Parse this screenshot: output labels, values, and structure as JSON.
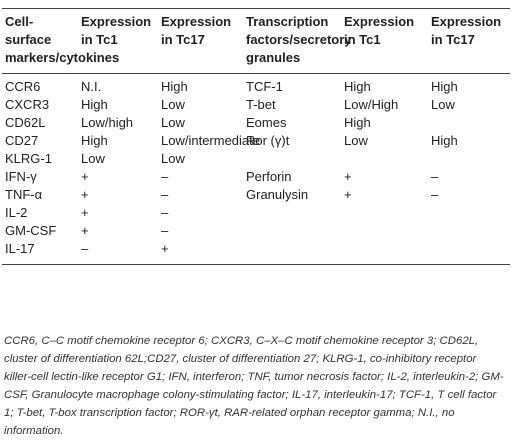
{
  "table": {
    "header": [
      "Cell-surface markers/cytokines",
      "Expression in Tc1",
      "Expression in Tc17",
      "Transcription factors/secretory granules",
      "Expression in Tc1",
      "Expression in Tc17"
    ],
    "rows": [
      [
        "CCR6",
        "N.I.",
        "High",
        "TCF-1",
        "High",
        "High"
      ],
      [
        "CXCR3",
        "High",
        "Low",
        "T-bet",
        "Low/High",
        "Low"
      ],
      [
        "CD62L",
        "Low/high",
        "Low",
        "Eomes",
        "High",
        null
      ],
      [
        "CD27",
        "High",
        "Low/intermediate",
        "Ror (γ)t",
        "Low",
        "High"
      ],
      [
        "KLRG-1",
        "Low",
        "Low",
        null,
        null,
        null
      ],
      [
        "IFN-γ",
        "+",
        "–",
        "Perforin",
        "+",
        "–"
      ],
      [
        "TNF-α",
        "+",
        "–",
        "Granulysin",
        "+",
        "–"
      ],
      [
        "IL-2",
        "+",
        "–",
        null,
        null,
        null
      ],
      [
        "GM-CSF",
        "+",
        "–",
        null,
        null,
        null
      ],
      [
        "IL-17",
        "–",
        "+",
        null,
        null,
        null
      ]
    ]
  },
  "footnote": "CCR6, C–C motif chemokine receptor 6; CXCR3, C–X–C motif chemokine receptor 3; CD62L, cluster of differentiation 62L;CD27, cluster of differentiation 27; KLRG-1, co-inhibitory receptor killer-cell lectin-like receptor G1; IFN, interferon; TNF, tumor necrosis factor; IL-2, interleukin-2; GM-CSF, Granulocyte macrophage colony-stimulating factor; IL-17, interleukin-17; TCF-1, T cell factor 1; T-bet, T-box transcription factor; ROR-γt, RAR-related orphan receptor gamma; N.I., no information."
}
